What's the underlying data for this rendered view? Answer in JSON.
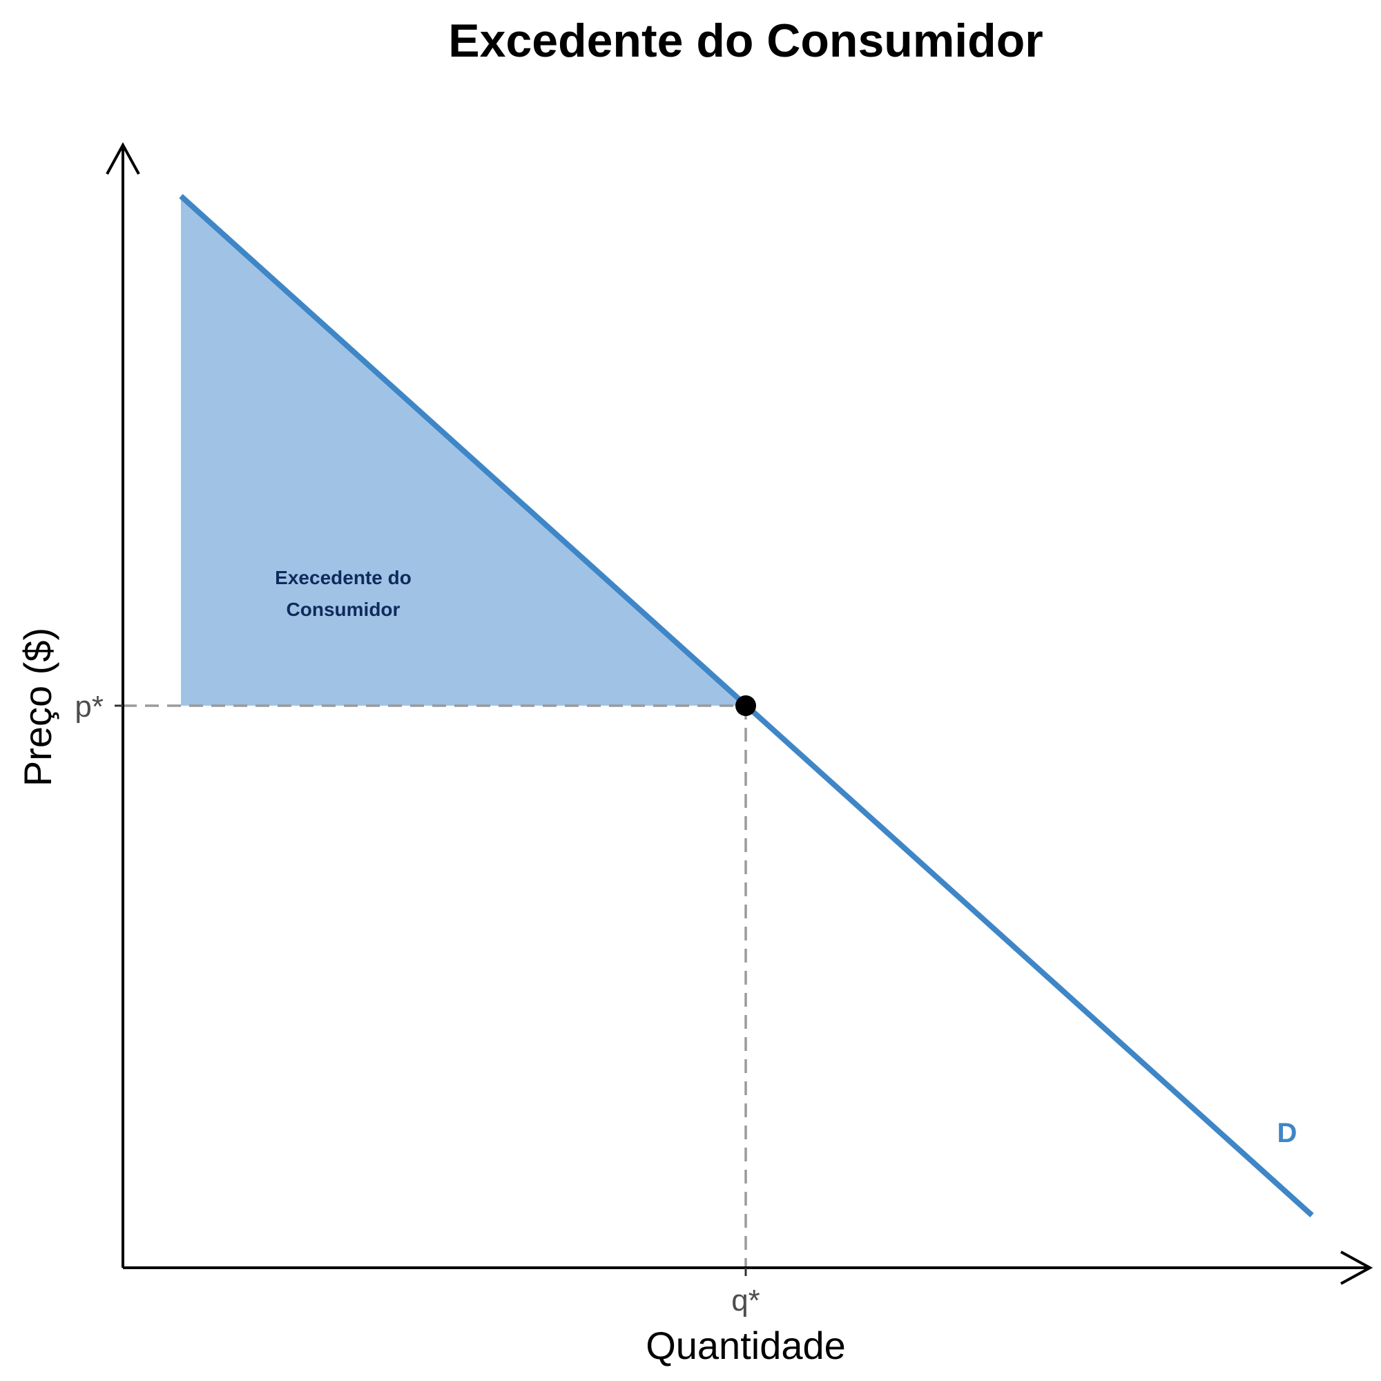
{
  "title": "Excedente do Consumidor",
  "axes": {
    "x_label": "Quantidade",
    "y_label": "Preço ($)"
  },
  "ticks": {
    "x_equilibrium": "q*",
    "y_equilibrium": "p*"
  },
  "area": {
    "label_line1": "Execedente do",
    "label_line2": "Consumidor"
  },
  "demand_curve": {
    "label": "D"
  },
  "colors": {
    "demand": "#3f86c6",
    "surplus_fill": "#a0c3e5",
    "surplus_text": "#0f2a5c",
    "guide": "#9a9a9a",
    "axis": "#000000"
  }
}
